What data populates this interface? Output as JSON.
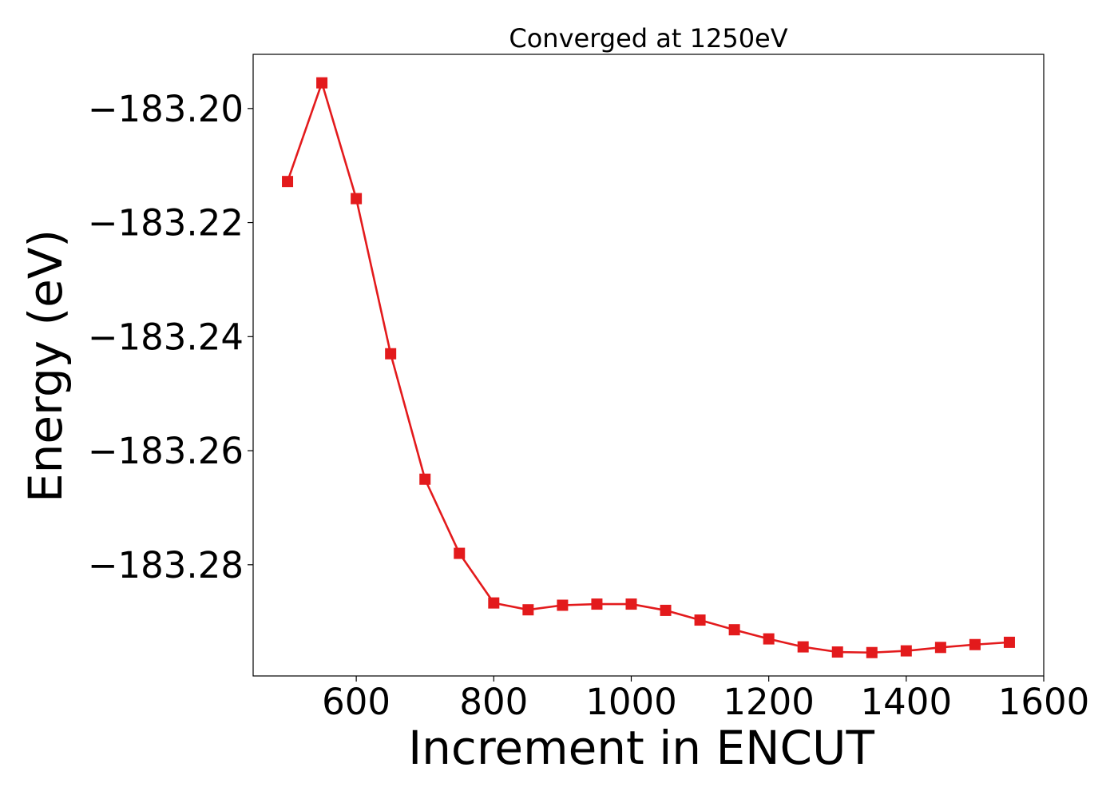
{
  "chart_data": {
    "type": "line",
    "title": "Converged at 1250eV",
    "xlabel": "Increment in ENCUT",
    "ylabel": "Energy (eV)",
    "xlim": [
      450,
      1600
    ],
    "ylim": [
      -183.2995,
      -183.1905
    ],
    "xticks": [
      600,
      800,
      1000,
      1200,
      1400,
      1600
    ],
    "xtick_labels": [
      "600",
      "800",
      "1000",
      "1200",
      "1400",
      "1600"
    ],
    "yticks": [
      -183.2,
      -183.22,
      -183.24,
      -183.26,
      -183.28
    ],
    "ytick_labels": [
      "−183.20",
      "−183.22",
      "−183.24",
      "−183.26",
      "−183.28"
    ],
    "grid": false,
    "series": [
      {
        "color": "#e31a1c",
        "marker": "square",
        "x": [
          500,
          550,
          600,
          650,
          700,
          750,
          800,
          850,
          900,
          950,
          1000,
          1050,
          1100,
          1150,
          1200,
          1250,
          1300,
          1350,
          1400,
          1450,
          1500,
          1550
        ],
        "y": [
          -183.2128,
          -183.1955,
          -183.2158,
          -183.243,
          -183.265,
          -183.278,
          -183.2867,
          -183.2879,
          -183.2871,
          -183.2869,
          -183.2869,
          -183.288,
          -183.2897,
          -183.2914,
          -183.293,
          -183.2944,
          -183.2953,
          -183.2954,
          -183.2951,
          -183.2945,
          -183.294,
          -183.2936
        ]
      }
    ]
  }
}
